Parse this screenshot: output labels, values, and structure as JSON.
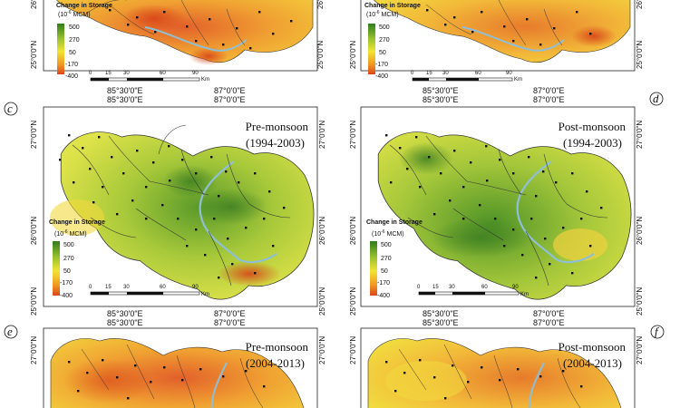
{
  "figure": {
    "panel_labels": [
      "c",
      "d",
      "e",
      "f"
    ],
    "lat_labels": [
      "27°0'0\"N",
      "26°0'0\"N",
      "25°0'0\"N"
    ],
    "lon_labels": [
      "85°30'0\"E",
      "87°0'0\"E"
    ],
    "legend": {
      "title": "Change in Storage",
      "unit": "(10",
      "unit_exp": "-6",
      "unit_tail": " MCM)",
      "values": [
        "500",
        "270",
        "50",
        "-170",
        "-400"
      ],
      "colors": [
        "#2f7d1a",
        "#9ac22f",
        "#f1e433",
        "#f09a22",
        "#d9461a"
      ]
    },
    "scalebar": {
      "ticks_full": [
        "0",
        "15",
        "30",
        "60",
        "90"
      ],
      "ticks_short": [
        "0",
        "15",
        "30",
        "60",
        "90"
      ],
      "unit": "Km"
    },
    "panels": [
      {
        "id": "top-left",
        "season": "",
        "period": "",
        "tone": "orange"
      },
      {
        "id": "top-right",
        "season": "",
        "period": "",
        "tone": "orange"
      },
      {
        "id": "c",
        "season": "Pre-monsoon",
        "period": "(1994-2003)",
        "tone": "green"
      },
      {
        "id": "d",
        "season": "Post-monsoon",
        "period": "(1994-2003)",
        "tone": "green"
      },
      {
        "id": "e",
        "season": "Pre-monsoon",
        "period": "(2004-2013)",
        "tone": "orange"
      },
      {
        "id": "f",
        "season": "Post-monsoon",
        "period": "(2004-2013)",
        "tone": "orange"
      }
    ]
  }
}
